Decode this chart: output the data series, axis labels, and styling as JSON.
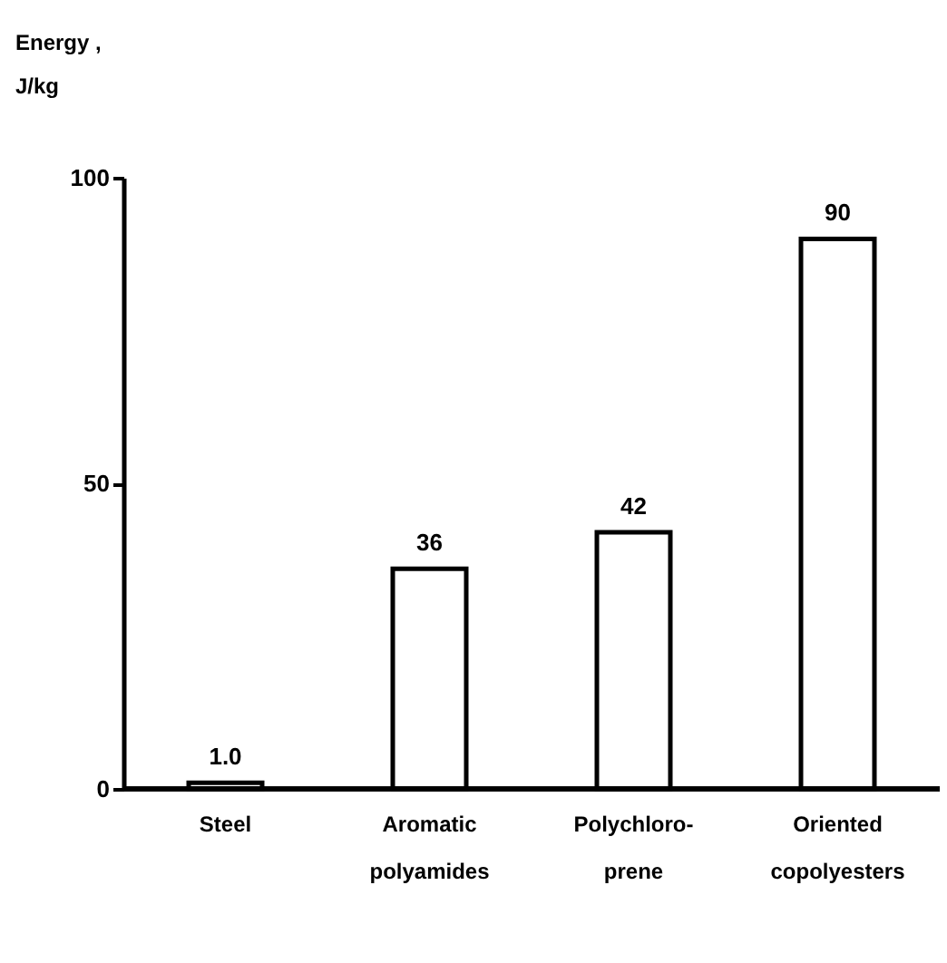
{
  "chart_data": {
    "type": "bar",
    "ylabel": "Energy ,\nJ/kg",
    "categories": [
      "Steel",
      "Aromatic\npolyamides",
      "Polychloro-\nprene",
      "Oriented\ncopolyesters"
    ],
    "values": [
      1.0,
      36,
      42,
      90
    ],
    "value_labels": [
      "1.0",
      "36",
      "42",
      "90"
    ],
    "color": "#ffffff",
    "ylim": [
      0,
      100
    ],
    "yticks": [
      0,
      50,
      100
    ],
    "grid": false
  }
}
